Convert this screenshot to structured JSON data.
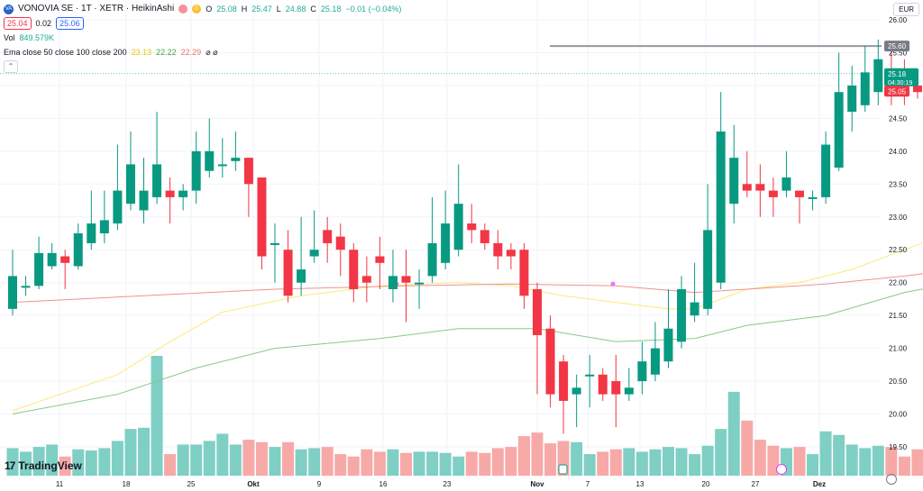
{
  "header": {
    "symbol_title": "VONOVIA SE · 1T · XETR · HeikinAshi",
    "logo_text": "VA",
    "badge_d": "D",
    "ohlc": {
      "o_label": "O",
      "o": "25.08",
      "h_label": "H",
      "h": "25.47",
      "l_label": "L",
      "l": "24.88",
      "c_label": "C",
      "c": "25.18",
      "change": "−0.01 (−0.04%)"
    },
    "bid": "25.04",
    "spread": "0.02",
    "ask": "25.06",
    "vol_label": "Vol",
    "vol_value": "849.579K",
    "ema_label": "Ema close 50 close 100 close 200",
    "ema_values": [
      "23.13",
      "22.22",
      "22.29"
    ],
    "ema_icons": "⌀ ⌀",
    "collapse_icon": "chevron-up-icon"
  },
  "currency": "EUR",
  "brand": "TradingView",
  "colors": {
    "up": "#089981",
    "down": "#f23645",
    "vol_up": "#7fcfc4",
    "vol_down": "#f7a9a7",
    "ema50": "#fbe97a",
    "ema100": "#86c988",
    "ema200": "#f0928f",
    "hline": "#9598a1"
  },
  "chart_data": {
    "type": "candlestick",
    "style": "HeikinAshi",
    "ylim": [
      19.3,
      26.1
    ],
    "y_ticks": [
      "26.00",
      "25.50",
      "25.00",
      "24.50",
      "24.00",
      "23.50",
      "23.00",
      "22.50",
      "22.00",
      "21.50",
      "21.00",
      "20.50",
      "20.00",
      "19.50"
    ],
    "x_ticks": [
      "11",
      "18",
      "25",
      "Okt",
      "9",
      "16",
      "23",
      "Nov",
      "7",
      "13",
      "20",
      "27",
      "Dez"
    ],
    "horizontal_line": 25.6,
    "price_labels": [
      {
        "value": "25.60",
        "kind": "hline"
      },
      {
        "value": "25.18",
        "kind": "last",
        "sub": "04:30:19"
      },
      {
        "value": "25.05",
        "kind": "ema"
      }
    ],
    "candles": [
      {
        "o": 21.6,
        "c": 22.1,
        "h": 22.5,
        "l": 21.5,
        "v": 0.23
      },
      {
        "o": 21.95,
        "c": 21.95,
        "h": 22.1,
        "l": 21.8,
        "v": 0.2
      },
      {
        "o": 21.95,
        "c": 22.45,
        "h": 22.7,
        "l": 21.9,
        "v": 0.24
      },
      {
        "o": 22.25,
        "c": 22.45,
        "h": 22.6,
        "l": 22.2,
        "v": 0.26
      },
      {
        "o": 22.4,
        "c": 22.3,
        "h": 22.5,
        "l": 21.9,
        "v": 0.16
      },
      {
        "o": 22.25,
        "c": 22.75,
        "h": 22.9,
        "l": 22.2,
        "v": 0.22
      },
      {
        "o": 22.6,
        "c": 22.9,
        "h": 23.4,
        "l": 22.5,
        "v": 0.21
      },
      {
        "o": 22.75,
        "c": 22.95,
        "h": 23.4,
        "l": 22.6,
        "v": 0.23
      },
      {
        "o": 22.9,
        "c": 23.4,
        "h": 24.1,
        "l": 22.8,
        "v": 0.29
      },
      {
        "o": 23.2,
        "c": 23.8,
        "h": 24.3,
        "l": 23.1,
        "v": 0.39
      },
      {
        "o": 23.1,
        "c": 23.4,
        "h": 23.9,
        "l": 22.9,
        "v": 0.4
      },
      {
        "o": 23.3,
        "c": 23.8,
        "h": 24.6,
        "l": 23.2,
        "v": 1.0
      },
      {
        "o": 23.4,
        "c": 23.3,
        "h": 23.6,
        "l": 22.9,
        "v": 0.18
      },
      {
        "o": 23.3,
        "c": 23.4,
        "h": 23.5,
        "l": 23.1,
        "v": 0.26
      },
      {
        "o": 23.4,
        "c": 24.0,
        "h": 24.3,
        "l": 23.2,
        "v": 0.26
      },
      {
        "o": 23.7,
        "c": 24.0,
        "h": 24.5,
        "l": 23.6,
        "v": 0.29
      },
      {
        "o": 23.8,
        "c": 23.8,
        "h": 24.2,
        "l": 23.6,
        "v": 0.35
      },
      {
        "o": 23.85,
        "c": 23.9,
        "h": 24.3,
        "l": 23.7,
        "v": 0.26
      },
      {
        "o": 23.9,
        "c": 23.5,
        "h": 23.9,
        "l": 23.0,
        "v": 0.3
      },
      {
        "o": 23.6,
        "c": 22.4,
        "h": 23.6,
        "l": 22.2,
        "v": 0.28
      },
      {
        "o": 22.6,
        "c": 22.6,
        "h": 22.9,
        "l": 22.0,
        "v": 0.24
      },
      {
        "o": 22.5,
        "c": 21.8,
        "h": 22.8,
        "l": 21.7,
        "v": 0.28
      },
      {
        "o": 22.0,
        "c": 22.2,
        "h": 23.0,
        "l": 21.8,
        "v": 0.22
      },
      {
        "o": 22.4,
        "c": 22.5,
        "h": 23.1,
        "l": 22.3,
        "v": 0.23
      },
      {
        "o": 22.8,
        "c": 22.6,
        "h": 23.0,
        "l": 22.3,
        "v": 0.24
      },
      {
        "o": 22.7,
        "c": 22.5,
        "h": 22.9,
        "l": 22.1,
        "v": 0.18
      },
      {
        "o": 22.5,
        "c": 21.9,
        "h": 22.6,
        "l": 21.7,
        "v": 0.16
      },
      {
        "o": 22.1,
        "c": 22.0,
        "h": 22.4,
        "l": 21.7,
        "v": 0.22
      },
      {
        "o": 22.4,
        "c": 22.3,
        "h": 22.7,
        "l": 21.9,
        "v": 0.2
      },
      {
        "o": 21.9,
        "c": 22.1,
        "h": 22.5,
        "l": 21.7,
        "v": 0.22
      },
      {
        "o": 22.1,
        "c": 22.0,
        "h": 22.5,
        "l": 21.4,
        "v": 0.19
      },
      {
        "o": 22.0,
        "c": 22.0,
        "h": 22.2,
        "l": 21.6,
        "v": 0.2
      },
      {
        "o": 22.1,
        "c": 22.6,
        "h": 23.3,
        "l": 22.0,
        "v": 0.2
      },
      {
        "o": 22.3,
        "c": 22.9,
        "h": 23.4,
        "l": 22.2,
        "v": 0.19
      },
      {
        "o": 22.5,
        "c": 23.2,
        "h": 23.8,
        "l": 22.4,
        "v": 0.16
      },
      {
        "o": 22.9,
        "c": 22.8,
        "h": 23.2,
        "l": 22.6,
        "v": 0.2
      },
      {
        "o": 22.8,
        "c": 22.6,
        "h": 22.9,
        "l": 22.5,
        "v": 0.19
      },
      {
        "o": 22.6,
        "c": 22.4,
        "h": 22.8,
        "l": 22.2,
        "v": 0.23
      },
      {
        "o": 22.5,
        "c": 22.4,
        "h": 22.6,
        "l": 22.2,
        "v": 0.24
      },
      {
        "o": 22.5,
        "c": 21.8,
        "h": 22.6,
        "l": 21.6,
        "v": 0.33
      },
      {
        "o": 21.9,
        "c": 21.2,
        "h": 22.0,
        "l": 20.3,
        "v": 0.36
      },
      {
        "o": 21.3,
        "c": 20.3,
        "h": 21.5,
        "l": 20.1,
        "v": 0.27
      },
      {
        "o": 20.8,
        "c": 20.2,
        "h": 20.9,
        "l": 19.7,
        "v": 0.29
      },
      {
        "o": 20.3,
        "c": 20.4,
        "h": 20.6,
        "l": 19.8,
        "v": 0.28
      },
      {
        "o": 20.6,
        "c": 20.6,
        "h": 20.9,
        "l": 20.1,
        "v": 0.18
      },
      {
        "o": 20.6,
        "c": 20.3,
        "h": 20.7,
        "l": 20.2,
        "v": 0.2
      },
      {
        "o": 20.5,
        "c": 20.3,
        "h": 20.9,
        "l": 19.8,
        "v": 0.22
      },
      {
        "o": 20.3,
        "c": 20.4,
        "h": 20.7,
        "l": 20.2,
        "v": 0.23
      },
      {
        "o": 20.5,
        "c": 20.8,
        "h": 21.1,
        "l": 20.3,
        "v": 0.2
      },
      {
        "o": 20.6,
        "c": 21.0,
        "h": 21.4,
        "l": 20.5,
        "v": 0.22
      },
      {
        "o": 20.8,
        "c": 21.3,
        "h": 21.9,
        "l": 20.7,
        "v": 0.24
      },
      {
        "o": 21.1,
        "c": 21.9,
        "h": 22.1,
        "l": 21.0,
        "v": 0.23
      },
      {
        "o": 21.5,
        "c": 21.7,
        "h": 22.3,
        "l": 21.4,
        "v": 0.18
      },
      {
        "o": 21.6,
        "c": 22.8,
        "h": 23.5,
        "l": 21.5,
        "v": 0.25
      },
      {
        "o": 22.0,
        "c": 24.3,
        "h": 24.9,
        "l": 21.9,
        "v": 0.39
      },
      {
        "o": 23.2,
        "c": 23.9,
        "h": 24.4,
        "l": 22.9,
        "v": 0.7
      },
      {
        "o": 23.5,
        "c": 23.4,
        "h": 24.0,
        "l": 23.3,
        "v": 0.46
      },
      {
        "o": 23.5,
        "c": 23.4,
        "h": 23.8,
        "l": 23.0,
        "v": 0.3
      },
      {
        "o": 23.4,
        "c": 23.3,
        "h": 23.6,
        "l": 23.0,
        "v": 0.25
      },
      {
        "o": 23.4,
        "c": 23.6,
        "h": 24.0,
        "l": 23.3,
        "v": 0.23
      },
      {
        "o": 23.4,
        "c": 23.3,
        "h": 23.4,
        "l": 22.9,
        "v": 0.24
      },
      {
        "o": 23.3,
        "c": 23.3,
        "h": 23.4,
        "l": 23.1,
        "v": 0.18
      },
      {
        "o": 23.3,
        "c": 24.1,
        "h": 24.3,
        "l": 23.2,
        "v": 0.37
      },
      {
        "o": 23.75,
        "c": 24.9,
        "h": 25.5,
        "l": 23.7,
        "v": 0.34
      },
      {
        "o": 24.6,
        "c": 25.0,
        "h": 25.3,
        "l": 24.3,
        "v": 0.26
      },
      {
        "o": 24.7,
        "c": 25.2,
        "h": 25.6,
        "l": 24.6,
        "v": 0.23
      },
      {
        "o": 24.9,
        "c": 25.4,
        "h": 25.7,
        "l": 24.7,
        "v": 0.25
      },
      {
        "o": 25.2,
        "c": 25.1,
        "h": 25.6,
        "l": 24.7,
        "v": 0.24
      },
      {
        "o": 25.1,
        "c": 24.9,
        "h": 25.4,
        "l": 24.7,
        "v": 0.16
      },
      {
        "o": 25.0,
        "c": 24.9,
        "h": 25.1,
        "l": 24.8,
        "v": 0.22
      },
      {
        "o": 24.95,
        "c": 25.0,
        "h": 25.2,
        "l": 24.8,
        "v": 0.18
      },
      {
        "o": 25.0,
        "c": 25.2,
        "h": 25.5,
        "l": 24.9,
        "v": 0.22
      },
      {
        "o": 25.08,
        "c": 25.18,
        "h": 25.47,
        "l": 24.88,
        "v": 0.21
      }
    ],
    "ema50": [
      [
        0,
        20.05
      ],
      [
        8,
        20.6
      ],
      [
        12,
        21.1
      ],
      [
        16,
        21.55
      ],
      [
        22,
        21.8
      ],
      [
        28,
        21.95
      ],
      [
        34,
        22.0
      ],
      [
        38,
        21.95
      ],
      [
        42,
        21.8
      ],
      [
        46,
        21.7
      ],
      [
        50,
        21.6
      ],
      [
        52,
        21.6
      ],
      [
        56,
        21.9
      ],
      [
        60,
        22.0
      ],
      [
        64,
        22.2
      ],
      [
        68,
        22.5
      ],
      [
        72,
        22.8
      ],
      [
        76,
        23.13
      ]
    ],
    "ema100": [
      [
        0,
        20.0
      ],
      [
        8,
        20.3
      ],
      [
        14,
        20.7
      ],
      [
        20,
        21.0
      ],
      [
        28,
        21.15
      ],
      [
        34,
        21.3
      ],
      [
        40,
        21.3
      ],
      [
        46,
        21.1
      ],
      [
        52,
        21.15
      ],
      [
        56,
        21.35
      ],
      [
        62,
        21.5
      ],
      [
        68,
        21.85
      ],
      [
        72,
        22.0
      ],
      [
        76,
        22.22
      ]
    ],
    "ema200": [
      [
        0,
        21.7
      ],
      [
        10,
        21.8
      ],
      [
        20,
        21.9
      ],
      [
        30,
        21.95
      ],
      [
        38,
        21.98
      ],
      [
        46,
        21.95
      ],
      [
        52,
        21.85
      ],
      [
        56,
        21.9
      ],
      [
        62,
        21.98
      ],
      [
        68,
        22.1
      ],
      [
        72,
        22.2
      ],
      [
        76,
        22.29
      ]
    ]
  }
}
